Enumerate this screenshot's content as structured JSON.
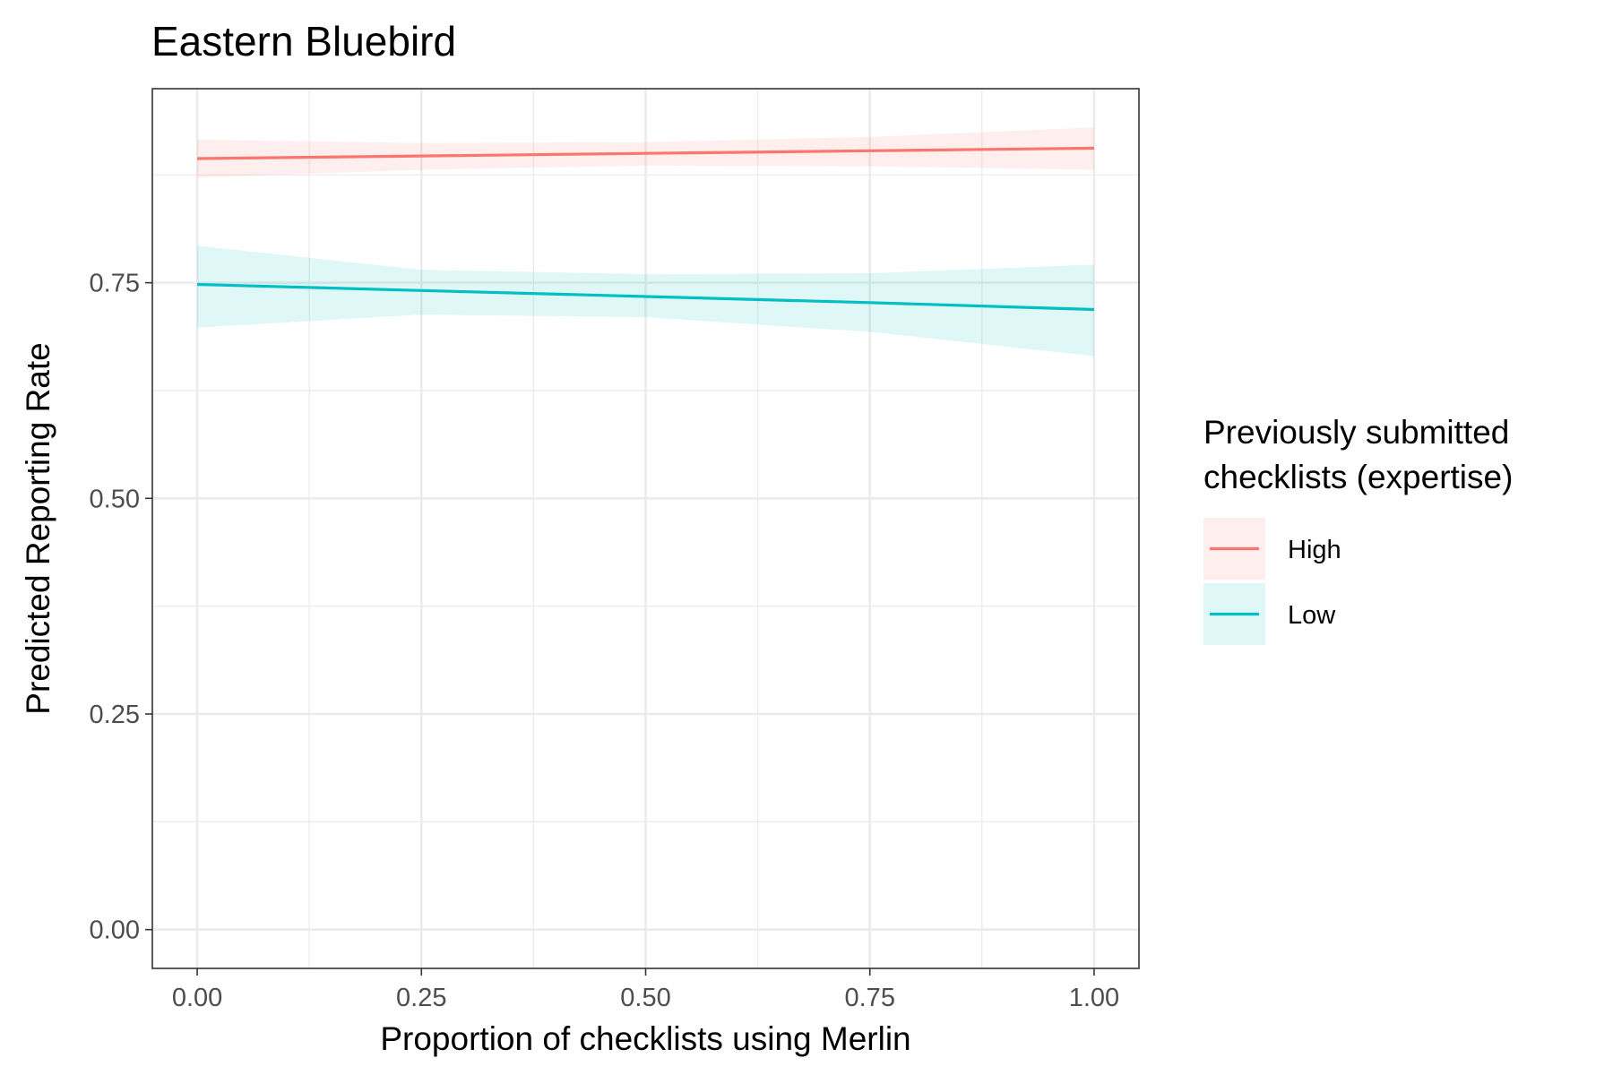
{
  "chart_data": {
    "type": "line",
    "title": "Eastern Bluebird",
    "xlabel": "Proportion of checklists using Merlin",
    "ylabel": "Predicted Reporting Rate",
    "xlim": [
      -0.05,
      1.05
    ],
    "ylim": [
      -0.045,
      0.975
    ],
    "x_ticks": [
      0,
      0.25,
      0.5,
      0.75,
      1
    ],
    "x_tick_labels": [
      "0.00",
      "0.25",
      "0.50",
      "0.75",
      "1.00"
    ],
    "y_ticks": [
      0,
      0.25,
      0.5,
      0.75
    ],
    "y_tick_labels": [
      "0.00",
      "0.25",
      "0.50",
      "0.75"
    ],
    "grid": true,
    "legend": {
      "title_lines": [
        "Previously submitted",
        "checklists (expertise)"
      ],
      "position": "right"
    },
    "series": [
      {
        "name": "High",
        "color": "#F8766D",
        "x": [
          0,
          0.25,
          0.5,
          0.75,
          1
        ],
        "y": [
          0.894,
          0.897,
          0.9,
          0.903,
          0.906
        ],
        "ribbon_lower": [
          0.872,
          0.881,
          0.886,
          0.885,
          0.881
        ],
        "ribbon_upper": [
          0.916,
          0.912,
          0.913,
          0.919,
          0.93
        ]
      },
      {
        "name": "Low",
        "color": "#00BFC4",
        "x": [
          0,
          0.25,
          0.5,
          0.75,
          1
        ],
        "y": [
          0.748,
          0.741,
          0.734,
          0.727,
          0.719
        ],
        "ribbon_lower": [
          0.698,
          0.713,
          0.71,
          0.693,
          0.665
        ],
        "ribbon_upper": [
          0.793,
          0.765,
          0.76,
          0.761,
          0.771
        ]
      }
    ]
  }
}
